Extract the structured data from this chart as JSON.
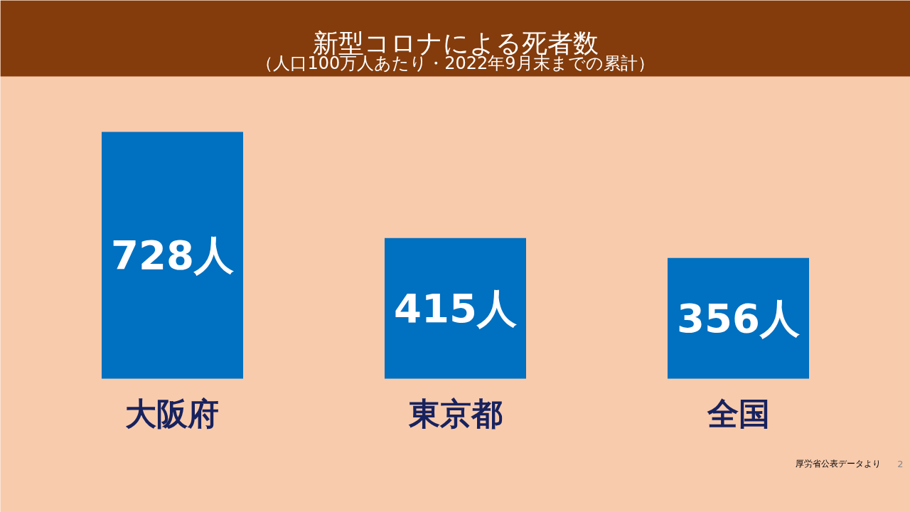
{
  "chart_data": {
    "type": "bar",
    "title": "新型コロナによる死者数",
    "subtitle": "（人口100万人あたり・2022年9月末までの累計）",
    "categories": [
      "大阪府",
      "東京都",
      "全国"
    ],
    "values": [
      728,
      415,
      356
    ],
    "value_labels": [
      "728人",
      "415人",
      "356人"
    ],
    "color": "#0070c0",
    "grid": false,
    "annotations": [
      "厚労省公表データより",
      "2"
    ]
  }
}
